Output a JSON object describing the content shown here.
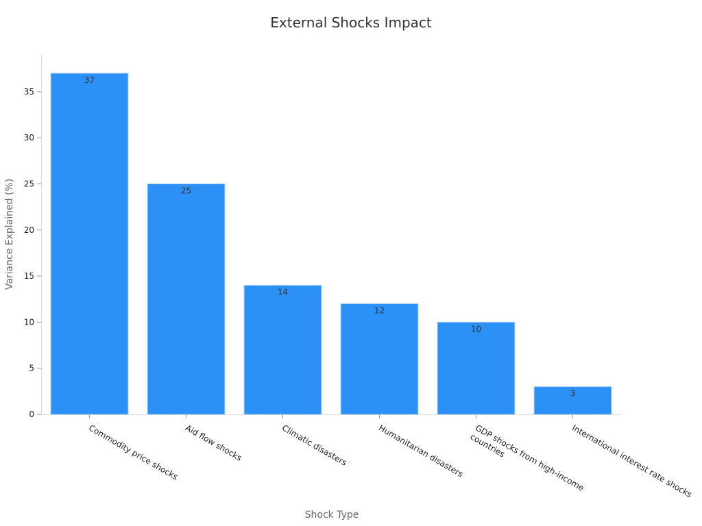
{
  "chart_data": {
    "type": "bar",
    "title": "External Shocks Impact",
    "xlabel": "Shock Type",
    "ylabel": "Variance Explained (%)",
    "categories": [
      "Commodity price shocks",
      "Aid flow shocks",
      "Climatic disasters",
      "Humanitarian disasters",
      "GDP shocks from high-income countries",
      "International interest rate shocks"
    ],
    "category_lines": [
      [
        "Commodity price shocks"
      ],
      [
        "Aid flow shocks"
      ],
      [
        "Climatic disasters"
      ],
      [
        "Humanitarian disasters"
      ],
      [
        "GDP shocks from high-income",
        "countries"
      ],
      [
        "International interest rate shocks"
      ]
    ],
    "values": [
      37,
      25,
      14,
      12,
      10,
      3
    ],
    "yticks": [
      0,
      5,
      10,
      15,
      20,
      25,
      30,
      35
    ],
    "ylim": [
      0,
      39
    ],
    "grid": false,
    "bar_color": "#2b91f7",
    "bar_edge_color": "#a9cdf5"
  }
}
